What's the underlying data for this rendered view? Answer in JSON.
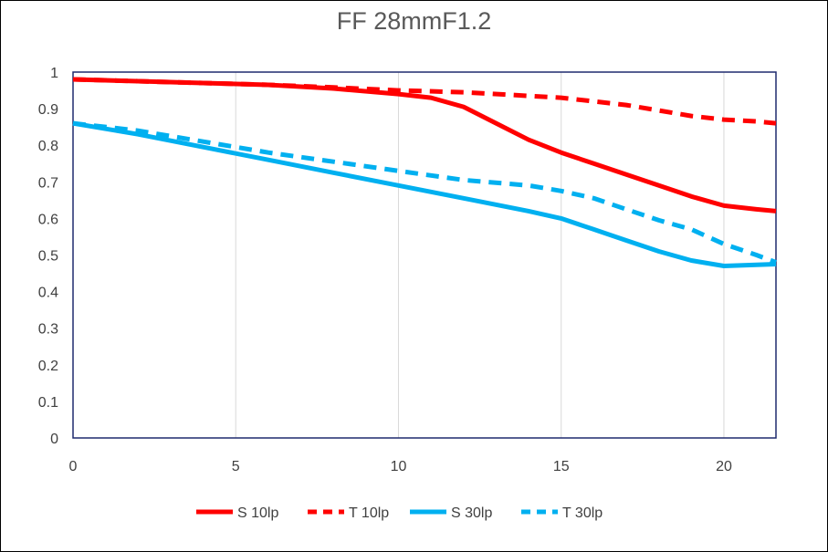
{
  "chart_data": {
    "type": "line",
    "title": "FF  28mmF1.2",
    "xlabel": "",
    "ylabel": "",
    "xlim": [
      0,
      21.6
    ],
    "ylim": [
      0,
      1
    ],
    "x_ticks": [
      "0",
      "5",
      "10",
      "15",
      "20"
    ],
    "y_ticks": [
      "0",
      "0.1",
      "0.2",
      "0.3",
      "0.4",
      "0.5",
      "0.6",
      "0.7",
      "0.8",
      "0.9",
      "1"
    ],
    "grid": "vertical",
    "legend_position": "bottom",
    "series": [
      {
        "name": "S 10lp",
        "color": "#ff0000",
        "dashed": false,
        "x": [
          0,
          2,
          4,
          6,
          8,
          10,
          11,
          12,
          13,
          14,
          15,
          16,
          17,
          18,
          19,
          20,
          21,
          21.6
        ],
        "y": [
          0.98,
          0.975,
          0.97,
          0.965,
          0.955,
          0.94,
          0.93,
          0.905,
          0.86,
          0.815,
          0.78,
          0.75,
          0.72,
          0.69,
          0.66,
          0.635,
          0.625,
          0.62
        ]
      },
      {
        "name": "T 10lp",
        "color": "#ff0000",
        "dashed": true,
        "x": [
          0,
          2,
          4,
          6,
          8,
          10,
          12,
          14,
          15,
          16,
          17,
          18,
          19,
          20,
          21,
          21.6
        ],
        "y": [
          0.98,
          0.975,
          0.97,
          0.965,
          0.958,
          0.95,
          0.945,
          0.935,
          0.93,
          0.92,
          0.91,
          0.895,
          0.88,
          0.87,
          0.865,
          0.86
        ]
      },
      {
        "name": "S 30lp",
        "color": "#00b0f0",
        "dashed": false,
        "x": [
          0,
          2,
          4,
          6,
          8,
          10,
          12,
          14,
          15,
          16,
          17,
          18,
          19,
          20,
          21,
          21.6
        ],
        "y": [
          0.86,
          0.83,
          0.795,
          0.76,
          0.725,
          0.69,
          0.655,
          0.62,
          0.6,
          0.57,
          0.54,
          0.51,
          0.485,
          0.47,
          0.473,
          0.475
        ]
      },
      {
        "name": "T 30lp",
        "color": "#00b0f0",
        "dashed": true,
        "x": [
          0,
          2,
          4,
          6,
          8,
          10,
          12,
          14,
          15,
          16,
          17,
          18,
          19,
          20,
          21,
          21.6
        ],
        "y": [
          0.86,
          0.84,
          0.81,
          0.78,
          0.755,
          0.73,
          0.705,
          0.69,
          0.675,
          0.655,
          0.625,
          0.595,
          0.57,
          0.53,
          0.5,
          0.48
        ]
      }
    ]
  }
}
